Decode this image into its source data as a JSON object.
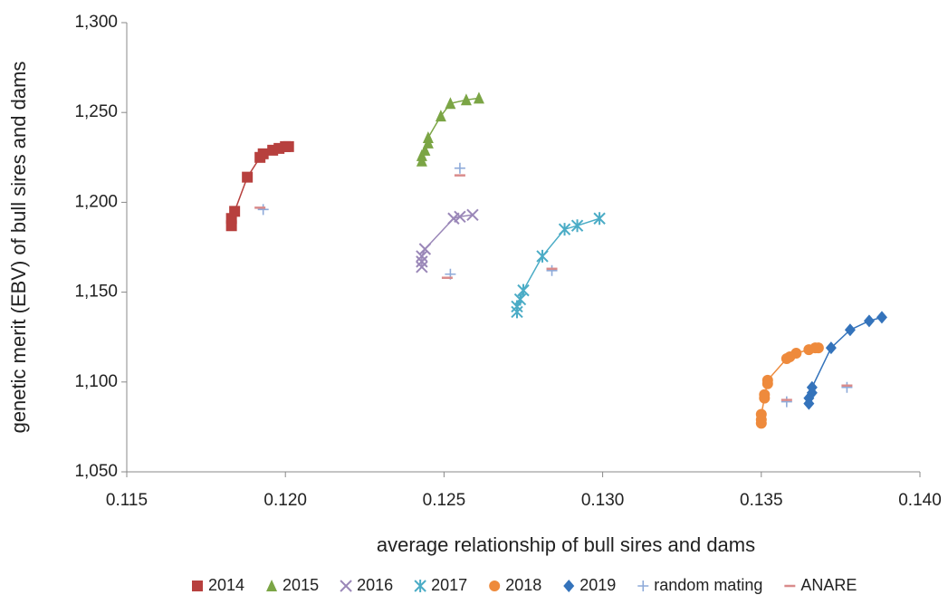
{
  "chart_data": {
    "type": "scatter",
    "x_label": "average relationship of bull sires and dams",
    "y_label": "genetic merit (EBV) of bull sires and dams",
    "xlim": [
      0.115,
      0.14
    ],
    "ylim": [
      1050,
      1300
    ],
    "xticks": [
      0.115,
      {
        "value": 0.12,
        "label": "0.120"
      },
      0.125,
      {
        "value": 0.13,
        "label": "0.130"
      },
      0.135,
      {
        "value": 0.14,
        "label": "0.140"
      }
    ],
    "yticks": [
      {
        "value": 1050,
        "label": "1,050"
      },
      {
        "value": 1100,
        "label": "1,100"
      },
      {
        "value": 1150,
        "label": "1,150"
      },
      {
        "value": 1200,
        "label": "1,200"
      },
      {
        "value": 1250,
        "label": "1,250"
      },
      {
        "value": 1300,
        "label": "1,300"
      }
    ],
    "grid": false,
    "legend": "bottom",
    "series": [
      {
        "name": "2014",
        "color": "#b7403e",
        "marker": "square",
        "trendline": true,
        "x": [
          0.1183,
          0.1183,
          0.1184,
          0.1188,
          0.1192,
          0.1193,
          0.1196,
          0.1198,
          0.12,
          0.1201
        ],
        "y": [
          1187,
          1191,
          1195,
          1214,
          1225,
          1227,
          1229,
          1230,
          1231,
          1231
        ]
      },
      {
        "name": "2015",
        "color": "#7ba545",
        "marker": "triangle",
        "trendline": true,
        "x": [
          0.1243,
          0.1243,
          0.1244,
          0.1245,
          0.1245,
          0.1249,
          0.1252,
          0.1257,
          0.1261
        ],
        "y": [
          1223,
          1226,
          1229,
          1233,
          1236,
          1248,
          1255,
          1257,
          1258
        ]
      },
      {
        "name": "2016",
        "color": "#9a87b8",
        "marker": "x",
        "trendline": true,
        "x": [
          0.1243,
          0.1243,
          0.1243,
          0.1244,
          0.1253,
          0.1255,
          0.1259
        ],
        "y": [
          1164,
          1167,
          1170,
          1174,
          1191,
          1192,
          1193
        ]
      },
      {
        "name": "2017",
        "color": "#4bacc6",
        "marker": "asterisk",
        "trendline": true,
        "x": [
          0.1273,
          0.1273,
          0.1274,
          0.1275,
          0.1281,
          0.1288,
          0.1292,
          0.1299
        ],
        "y": [
          1139,
          1142,
          1146,
          1151,
          1170,
          1185,
          1187,
          1191
        ]
      },
      {
        "name": "2018",
        "color": "#ee8a3c",
        "marker": "circle",
        "trendline": true,
        "x": [
          0.135,
          0.135,
          0.135,
          0.1351,
          0.1351,
          0.1352,
          0.1352,
          0.1358,
          0.1359,
          0.1361,
          0.1365,
          0.1367,
          0.1368
        ],
        "y": [
          1077,
          1079,
          1082,
          1091,
          1093,
          1099,
          1101,
          1113,
          1114,
          1116,
          1118,
          1119,
          1119
        ]
      },
      {
        "name": "2019",
        "color": "#3473bb",
        "marker": "diamond",
        "trendline": true,
        "x": [
          0.1365,
          0.1365,
          0.1366,
          0.1366,
          0.1372,
          0.1378,
          0.1384,
          0.1388
        ],
        "y": [
          1088,
          1091,
          1094,
          1097,
          1119,
          1129,
          1134,
          1136
        ]
      },
      {
        "name": "random mating",
        "color": "#8eaad9",
        "marker": "plus",
        "trendline": false,
        "x": [
          0.1193,
          0.1255,
          0.1252,
          0.1284,
          0.1358,
          0.1377
        ],
        "y": [
          1196,
          1219,
          1160,
          1162,
          1089,
          1097
        ]
      },
      {
        "name": "ANARE",
        "color": "#d98b8b",
        "marker": "dash",
        "trendline": false,
        "x": [
          0.1192,
          0.1255,
          0.1251,
          0.1284,
          0.1358,
          0.1377
        ],
        "y": [
          1197,
          1215,
          1158,
          1163,
          1090,
          1098
        ]
      }
    ]
  }
}
